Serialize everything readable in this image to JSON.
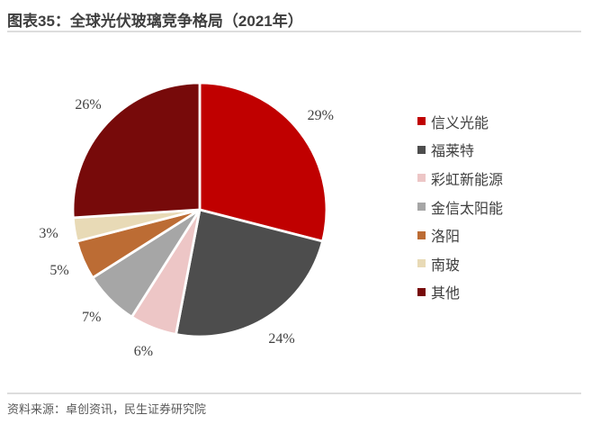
{
  "header": {
    "title": "图表35：全球光伏玻璃竞争格局（2021年）"
  },
  "footer": {
    "source": "资料来源：卓创资讯，民生证券研究院"
  },
  "chart_data": {
    "type": "pie",
    "title": "全球光伏玻璃竞争格局（2021年）",
    "year": "2021年",
    "direction": "clockwise",
    "start_angle": "12-oclock",
    "labels_outside": true,
    "legend_position": "right",
    "slice_border_color": "#ffffff",
    "slices": [
      {
        "name": "信义光能",
        "value": 29,
        "label": "29%",
        "color": "#c00000"
      },
      {
        "name": "福莱特",
        "value": 24,
        "label": "24%",
        "color": "#4d4d4d"
      },
      {
        "name": "彩虹新能源",
        "value": 6,
        "label": "6%",
        "color": "#edc6c6"
      },
      {
        "name": "金信太阳能",
        "value": 7,
        "label": "7%",
        "color": "#a6a6a6"
      },
      {
        "name": "洛阳",
        "value": 5,
        "label": "5%",
        "color": "#bc6c34"
      },
      {
        "name": "南玻",
        "value": 3,
        "label": "3%",
        "color": "#e8dab6"
      },
      {
        "name": "其他",
        "value": 26,
        "label": "26%",
        "color": "#770a0a"
      }
    ]
  },
  "colors": {
    "title_text": "#3f3f3f",
    "label_text": "#3f3f3f",
    "source_text": "#595959",
    "divider": "#dddddd"
  }
}
